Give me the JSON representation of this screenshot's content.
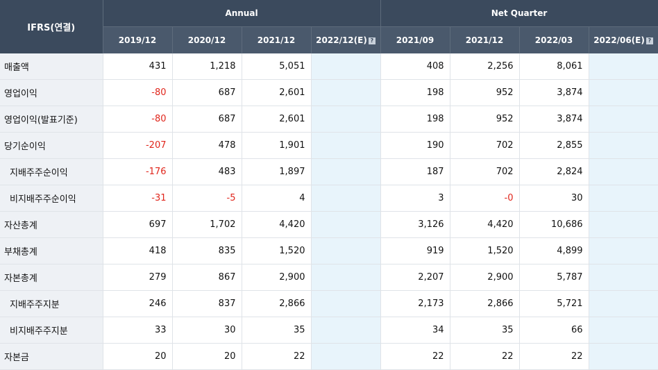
{
  "header": {
    "corner": "IFRS(연결)",
    "group_annual": "Annual",
    "group_quarter": "Net Quarter",
    "periods": [
      "2019/12",
      "2020/12",
      "2021/12",
      "2022/12(E)",
      "2021/09",
      "2021/12",
      "2022/03",
      "2022/06(E)"
    ]
  },
  "rows": [
    {
      "label": "매출액",
      "values": [
        "431",
        "1,218",
        "5,051",
        "",
        "408",
        "2,256",
        "8,061",
        ""
      ]
    },
    {
      "label": "영업이익",
      "values": [
        "-80",
        "687",
        "2,601",
        "",
        "198",
        "952",
        "3,874",
        ""
      ]
    },
    {
      "label": "영업이익(발표기준)",
      "values": [
        "-80",
        "687",
        "2,601",
        "",
        "198",
        "952",
        "3,874",
        ""
      ]
    },
    {
      "label": "당기순이익",
      "values": [
        "-207",
        "478",
        "1,901",
        "",
        "190",
        "702",
        "2,855",
        ""
      ]
    },
    {
      "label": "지배주주순이익",
      "values": [
        "-176",
        "483",
        "1,897",
        "",
        "187",
        "702",
        "2,824",
        ""
      ]
    },
    {
      "label": "비지배주주순이익",
      "values": [
        "-31",
        "-5",
        "4",
        "",
        "3",
        "-0",
        "30",
        ""
      ]
    },
    {
      "label": "자산총계",
      "values": [
        "697",
        "1,702",
        "4,420",
        "",
        "3,126",
        "4,420",
        "10,686",
        ""
      ]
    },
    {
      "label": "부채총계",
      "values": [
        "418",
        "835",
        "1,520",
        "",
        "919",
        "1,520",
        "4,899",
        ""
      ]
    },
    {
      "label": "자본총계",
      "values": [
        "279",
        "867",
        "2,900",
        "",
        "2,207",
        "2,900",
        "5,787",
        ""
      ]
    },
    {
      "label": "지배주주지분",
      "values": [
        "246",
        "837",
        "2,866",
        "",
        "2,173",
        "2,866",
        "5,721",
        ""
      ]
    },
    {
      "label": "비지배주주지분",
      "values": [
        "33",
        "30",
        "35",
        "",
        "34",
        "35",
        "66",
        ""
      ]
    },
    {
      "label": "자본금",
      "values": [
        "20",
        "20",
        "22",
        "",
        "22",
        "22",
        "22",
        ""
      ]
    }
  ],
  "colors": {
    "header_bg": "#3b4a5d",
    "negative": "#e0251b",
    "estimate_bg": "#e8f4fb",
    "label_bg": "#eef1f5"
  }
}
